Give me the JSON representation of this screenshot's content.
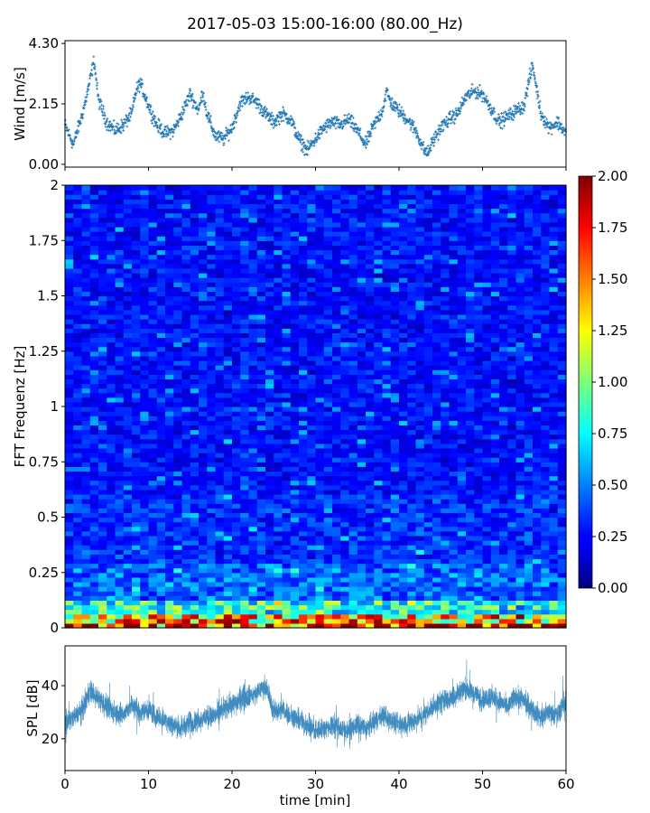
{
  "title": "2017-05-03 15:00-16:00 (80.00_Hz)",
  "chart_data": [
    {
      "type": "scatter",
      "name": "wind",
      "ylabel": "Wind [m/s]",
      "xlim": [
        0,
        60
      ],
      "ylim": [
        -0.1,
        4.4
      ],
      "yticks": [
        "0.00",
        "2.15",
        "4.30"
      ],
      "color": "#1f77b4",
      "profile": {
        "t": [
          0,
          1,
          2,
          2.5,
          3,
          3.5,
          4,
          5,
          6,
          7,
          8,
          8.5,
          9,
          10,
          11,
          12,
          13,
          14,
          15,
          16,
          16.5,
          17,
          18,
          19,
          20,
          21,
          22,
          23,
          24,
          25,
          26,
          27,
          28,
          29,
          30,
          31,
          32,
          33,
          34,
          35,
          36,
          37,
          38,
          38.5,
          39,
          40,
          41,
          42,
          43,
          43.5,
          44,
          45,
          46,
          47,
          48,
          49,
          50,
          51,
          52,
          53,
          54,
          55,
          55.5,
          56,
          57,
          58,
          59,
          60
        ],
        "wind": [
          1.4,
          0.7,
          1.7,
          2.3,
          3.0,
          3.7,
          2.3,
          1.5,
          1.2,
          1.4,
          1.8,
          2.6,
          2.9,
          2.1,
          1.4,
          1.1,
          1.2,
          1.8,
          2.5,
          1.9,
          2.6,
          1.8,
          1.0,
          0.9,
          1.3,
          2.2,
          2.4,
          2.2,
          1.8,
          1.5,
          1.8,
          1.6,
          0.9,
          0.5,
          0.9,
          1.3,
          1.5,
          1.4,
          1.6,
          1.2,
          0.7,
          1.4,
          1.9,
          2.6,
          2.2,
          1.9,
          1.6,
          1.2,
          0.5,
          0.4,
          0.8,
          1.3,
          1.6,
          1.8,
          2.4,
          2.6,
          2.5,
          2.0,
          1.5,
          1.7,
          1.9,
          2.1,
          2.9,
          3.5,
          1.8,
          1.3,
          1.5,
          1.1
        ]
      }
    },
    {
      "type": "heatmap",
      "name": "spectrogram",
      "ylabel": "FFT Frequenz [Hz]",
      "xlim": [
        0,
        60
      ],
      "ylim": [
        0,
        2
      ],
      "yticks": [
        "0",
        "0.25",
        "0.5",
        "0.75",
        "1",
        "1.25",
        "1.5",
        "1.75",
        "2"
      ],
      "colorbar": {
        "range": [
          0,
          2
        ],
        "ticks": [
          "0.00",
          "0.25",
          "0.50",
          "0.75",
          "1.00",
          "1.25",
          "1.50",
          "1.75",
          "2.00"
        ],
        "colormap": "jet"
      }
    },
    {
      "type": "line",
      "name": "spl",
      "ylabel": "SPL [dB]",
      "xlabel": "time [min]",
      "xlim": [
        0,
        60
      ],
      "ylim": [
        8,
        55
      ],
      "yticks": [
        "20",
        "40"
      ],
      "xticks": [
        "0",
        "10",
        "20",
        "30",
        "40",
        "50",
        "60"
      ],
      "color": "#1f77b4",
      "profile": {
        "t": [
          0,
          1,
          2,
          3,
          4,
          5,
          6,
          7,
          8,
          9,
          10,
          11,
          12,
          13,
          14,
          15,
          16,
          17,
          18,
          19,
          20,
          21,
          22,
          23,
          24,
          25,
          26,
          27,
          28,
          29,
          30,
          31,
          32,
          33,
          34,
          35,
          36,
          37,
          38,
          39,
          40,
          41,
          42,
          43,
          44,
          45,
          46,
          47,
          48,
          49,
          50,
          51,
          52,
          53,
          54,
          55,
          56,
          57,
          58,
          59,
          60
        ],
        "spl": [
          27,
          28,
          31,
          38,
          35,
          32,
          30,
          29,
          33,
          30,
          31,
          28,
          27,
          25,
          24,
          26,
          27,
          28,
          29,
          31,
          33,
          35,
          36,
          37,
          40,
          30,
          31,
          29,
          27,
          25,
          23,
          24,
          25,
          24,
          23,
          25,
          24,
          26,
          29,
          27,
          25,
          26,
          27,
          29,
          32,
          34,
          35,
          37,
          39,
          37,
          35,
          36,
          34,
          32,
          36,
          34,
          31,
          28,
          30,
          29,
          35
        ]
      }
    }
  ]
}
